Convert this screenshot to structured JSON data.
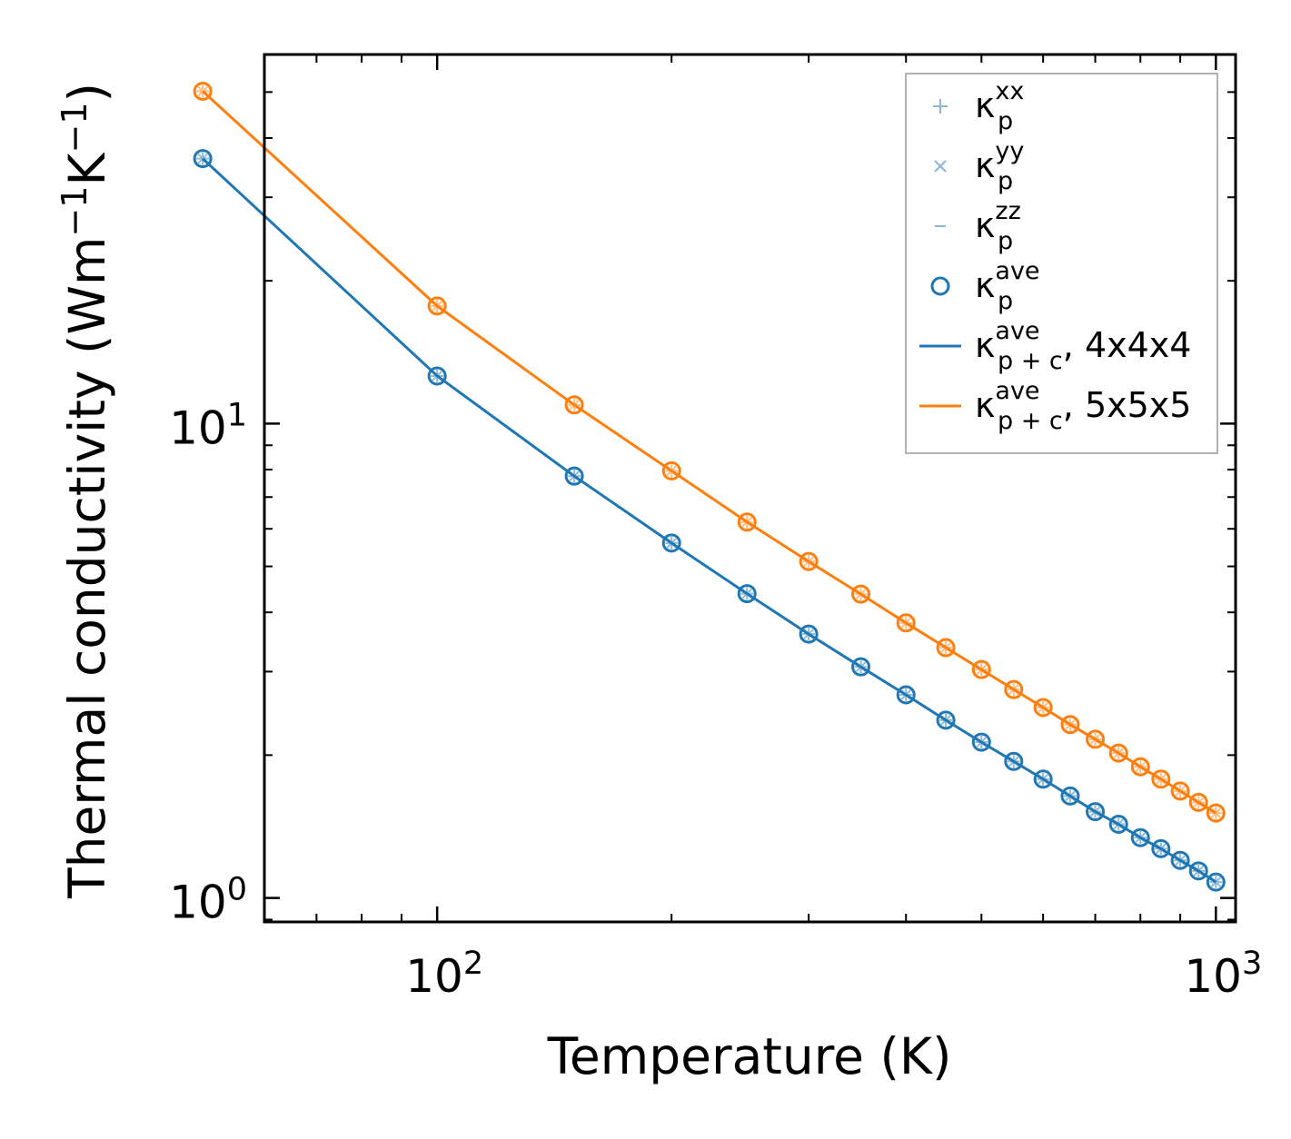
{
  "chart_data": {
    "type": "line",
    "xscale": "log",
    "yscale": "log",
    "xlabel": "Temperature (K)",
    "ylabel": {
      "prefix": "Thermal conductivity (Wm",
      "sup1": "−1",
      "mid": "K",
      "sup2": "−1",
      "suffix": ")"
    },
    "xlim": [
      60,
      1060
    ],
    "ylim": [
      0.89,
      60
    ],
    "xticks": [
      {
        "value": 100,
        "base": "10",
        "exp": "2"
      },
      {
        "value": 1000,
        "base": "10",
        "exp": "3"
      }
    ],
    "yticks": [
      {
        "value": 1,
        "base": "10",
        "exp": "0"
      },
      {
        "value": 10,
        "base": "10",
        "exp": "1"
      }
    ],
    "x": [
      50,
      100,
      150,
      200,
      250,
      300,
      350,
      400,
      450,
      500,
      550,
      600,
      650,
      700,
      750,
      800,
      850,
      900,
      950,
      1000
    ],
    "series": [
      {
        "name": "4x4x4",
        "color": "#1f77b4",
        "values": [
          36.2,
          12.6,
          7.75,
          5.6,
          4.38,
          3.6,
          3.07,
          2.68,
          2.37,
          2.13,
          1.94,
          1.78,
          1.64,
          1.52,
          1.43,
          1.34,
          1.27,
          1.2,
          1.14,
          1.08
        ]
      },
      {
        "name": "5x5x5",
        "color": "#ff7f0e",
        "values": [
          50.2,
          17.7,
          10.95,
          7.95,
          6.2,
          5.12,
          4.37,
          3.8,
          3.37,
          3.03,
          2.75,
          2.52,
          2.32,
          2.16,
          2.02,
          1.89,
          1.78,
          1.68,
          1.59,
          1.51
        ]
      }
    ],
    "legend": {
      "position": "top-right",
      "entries": [
        {
          "marker": "plus",
          "color": "#8fb5d6",
          "base": "κ",
          "sup": "xx",
          "sub": "p",
          "suffix": ""
        },
        {
          "marker": "x",
          "color": "#8fb5d6",
          "base": "κ",
          "sup": "yy",
          "sub": "p",
          "suffix": ""
        },
        {
          "marker": "dash",
          "color": "#8fb5d6",
          "base": "κ",
          "sup": "zz",
          "sub": "p",
          "suffix": ""
        },
        {
          "marker": "circle",
          "color": "#1f77b4",
          "base": "κ",
          "sup": "ave",
          "sub": "p",
          "suffix": ""
        },
        {
          "marker": "line",
          "color": "#1f77b4",
          "base": "κ",
          "sup": "ave",
          "sub": "p + c",
          "suffix": ", 4x4x4"
        },
        {
          "marker": "line",
          "color": "#ff7f0e",
          "base": "κ",
          "sup": "ave",
          "sub": "p + c",
          "suffix": ", 5x5x5"
        }
      ]
    }
  }
}
